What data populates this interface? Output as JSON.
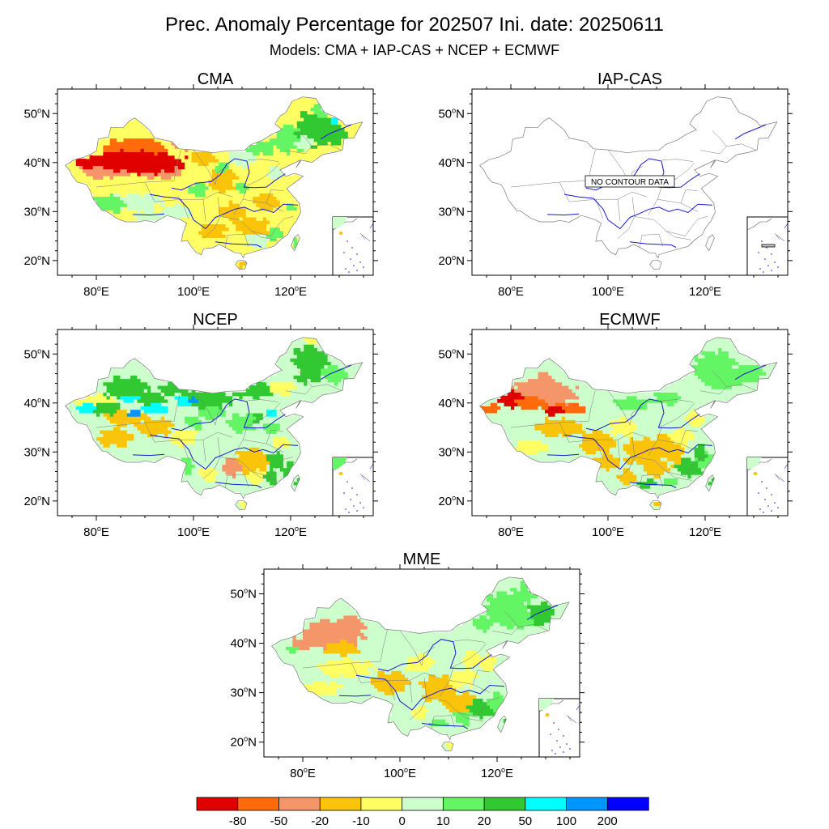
{
  "figure": {
    "title": "Prec. Anomaly Percentage for 202507 Ini. date: 20250611",
    "subtitle": "Models: CMA + IAP-CAS + NCEP + ECMWF"
  },
  "axes": {
    "x_ticks": [
      {
        "lon": 80,
        "num": "80",
        "suffix": "E"
      },
      {
        "lon": 100,
        "num": "100",
        "suffix": "E"
      },
      {
        "lon": 120,
        "num": "120",
        "suffix": "E"
      }
    ],
    "y_ticks": [
      {
        "lat": 50,
        "num": "50",
        "suffix": "N"
      },
      {
        "lat": 40,
        "num": "40",
        "suffix": "N"
      },
      {
        "lat": 30,
        "num": "30",
        "suffix": "N"
      },
      {
        "lat": 20,
        "num": "20",
        "suffix": "N"
      }
    ],
    "lon_range": [
      72,
      137
    ],
    "lat_range": [
      17,
      55
    ]
  },
  "panels": [
    {
      "id": "cma",
      "title": "CMA",
      "has_data": true,
      "dominant_anomaly": "dry-west wet-northeast"
    },
    {
      "id": "iap-cas",
      "title": "IAP-CAS",
      "has_data": false,
      "note": "NO CONTOUR DATA"
    },
    {
      "id": "ncep",
      "title": "NCEP",
      "has_data": true,
      "dominant_anomaly": "wet-north dry-south-central"
    },
    {
      "id": "ecmwf",
      "title": "ECMWF",
      "has_data": true,
      "dominant_anomaly": "dry-west wet-east"
    },
    {
      "id": "mme",
      "title": "MME",
      "has_data": true,
      "dominant_anomaly": "mixed"
    }
  ],
  "colorbar": {
    "labels": [
      "-80",
      "-50",
      "-20",
      "-10",
      "0",
      "10",
      "20",
      "50",
      "100",
      "200"
    ],
    "colors": [
      "#e00000",
      "#ff6a0a",
      "#f5966a",
      "#fac40a",
      "#ffff64",
      "#cdffcd",
      "#64f564",
      "#32c832",
      "#00ffff",
      "#0096ff",
      "#0000ff"
    ]
  },
  "map_colors": {
    "outline": "#7a7a7a",
    "river": "#1818d0"
  }
}
